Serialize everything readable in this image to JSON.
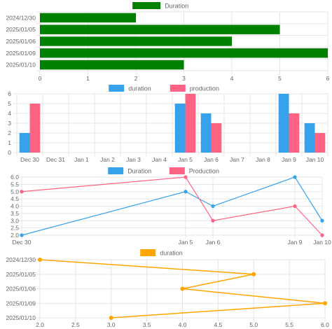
{
  "chart_data": [
    {
      "type": "bar",
      "orientation": "horizontal",
      "categories": [
        "2024/12/30",
        "2025/01/05",
        "2025/01/06",
        "2025/01/09",
        "2025/01/10"
      ],
      "series": [
        {
          "name": "Duration",
          "values": [
            2,
            5,
            4,
            6,
            3
          ],
          "color": "#008000"
        }
      ],
      "xlim": [
        0,
        6
      ],
      "xticks": [
        0,
        1,
        2,
        3,
        4,
        5,
        6
      ],
      "legend": "top-center",
      "grid": true
    },
    {
      "type": "bar",
      "categories": [
        "Dec 30",
        "Dec 31",
        "Jan 1",
        "Jan 2",
        "Jan 3",
        "Jan 4",
        "Jan 5",
        "Jan 6",
        "Jan 7",
        "Jan 8",
        "Jan 9",
        "Jan 10"
      ],
      "series": [
        {
          "name": "duration",
          "values": [
            2,
            null,
            null,
            null,
            null,
            null,
            5,
            4,
            null,
            null,
            6,
            3
          ],
          "color": "#36A2EB"
        },
        {
          "name": "production",
          "values": [
            5,
            null,
            null,
            null,
            null,
            null,
            6,
            3,
            null,
            null,
            4,
            2
          ],
          "color": "#FF6384"
        }
      ],
      "ylim": [
        0,
        6
      ],
      "yticks": [
        0,
        1,
        2,
        3,
        4,
        5,
        6
      ],
      "legend": "top-center",
      "grid": true
    },
    {
      "type": "line",
      "x": [
        "Dec 30",
        "Jan 5",
        "Jan 6",
        "Jan 9",
        "Jan 10"
      ],
      "x_positions_days": [
        0,
        6,
        7,
        10,
        11
      ],
      "x_ticks": [
        "Dec 30",
        "Jan 5",
        "Jan 6",
        "Jan 9",
        "Jan 10"
      ],
      "series": [
        {
          "name": "Duration",
          "values": [
            2,
            5,
            4,
            6,
            3
          ],
          "color": "#36A2EB"
        },
        {
          "name": "Production",
          "values": [
            5,
            6,
            3,
            4,
            2
          ],
          "color": "#FF6384"
        }
      ],
      "ylim": [
        2,
        6
      ],
      "yticks": [
        "2.0",
        "2.5",
        "3.0",
        "3.5",
        "4.0",
        "4.5",
        "5.0",
        "5.5",
        "6.0"
      ],
      "legend": "top-center",
      "grid": true
    },
    {
      "type": "line",
      "orientation": "horizontal",
      "categories": [
        "2024/12/30",
        "2025/01/05",
        "2025/01/06",
        "2025/01/09",
        "2025/01/10"
      ],
      "series": [
        {
          "name": "duration",
          "values": [
            2,
            5,
            4,
            6,
            3
          ],
          "color": "#FFA500"
        }
      ],
      "xlim": [
        2,
        6
      ],
      "xticks": [
        "2.0",
        "2.5",
        "3.0",
        "3.5",
        "4.0",
        "4.5",
        "5.0",
        "5.5",
        "6.0"
      ],
      "legend": "top-center",
      "grid": true
    }
  ]
}
